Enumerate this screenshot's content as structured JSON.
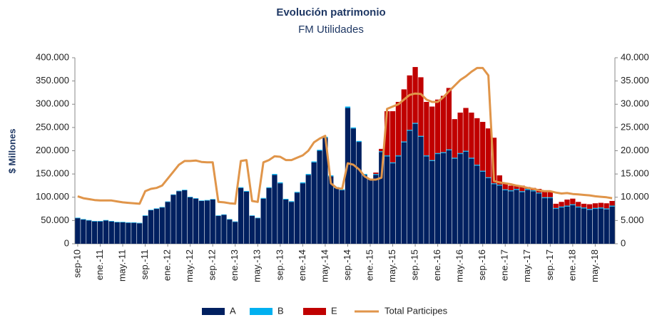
{
  "chart_data": {
    "type": "bar",
    "stacked": true,
    "title": "Evolución patrimonio",
    "subtitle": "FM Utilidades",
    "y_label": "$ Millones",
    "categories": [
      "sep-10",
      null,
      null,
      null,
      "ene.-11",
      null,
      null,
      null,
      "may.-11",
      null,
      null,
      null,
      "sep.-11",
      null,
      null,
      null,
      "ene.-12",
      null,
      null,
      null,
      "may.-12",
      null,
      null,
      null,
      "sep.-12",
      null,
      null,
      null,
      "ene.-13",
      null,
      null,
      null,
      "may.-13",
      null,
      null,
      null,
      "sep.-13",
      null,
      null,
      null,
      "ene.-14",
      null,
      null,
      null,
      "may.-14",
      null,
      null,
      null,
      "sep.-14",
      null,
      null,
      null,
      "ene.-15",
      null,
      null,
      null,
      "may.-15",
      null,
      null,
      null,
      "sep.-15",
      null,
      null,
      null,
      "ene.-16",
      null,
      null,
      null,
      "may.-16",
      null,
      null,
      null,
      "sep.-16",
      null,
      null,
      null,
      "ene.-17",
      null,
      null,
      null,
      "may.-17",
      null,
      null,
      null,
      "sep.-17",
      null,
      null,
      null,
      "ene.-18",
      null,
      null,
      null,
      "may.-18",
      null,
      null,
      null
    ],
    "series": [
      {
        "name": "A",
        "color": "#002060",
        "values": [
          55000,
          52000,
          50000,
          48000,
          48000,
          50000,
          48000,
          46000,
          46000,
          45000,
          45000,
          44000,
          60000,
          72000,
          75000,
          78000,
          90000,
          105000,
          113000,
          115000,
          100000,
          97000,
          92000,
          93000,
          95000,
          60000,
          62000,
          52000,
          47000,
          120000,
          112000,
          60000,
          55000,
          97000,
          120000,
          148000,
          130000,
          95000,
          90000,
          110000,
          130000,
          148000,
          175000,
          200000,
          228000,
          145000,
          120000,
          115000,
          292000,
          248000,
          219000,
          148000,
          138000,
          148000,
          197000,
          188000,
          173000,
          188000,
          218000,
          243000,
          258000,
          230000,
          188000,
          178000,
          193000,
          195000,
          201000,
          183000,
          193000,
          198000,
          183000,
          168000,
          155000,
          141000,
          128000,
          125000,
          115000,
          113000,
          116000,
          111000,
          116000,
          113000,
          108000,
          98000,
          98000,
          75000,
          78000,
          80000,
          83000,
          78000,
          76000,
          73000,
          75000,
          76000,
          74000,
          80000
        ]
      },
      {
        "name": "B",
        "color": "#00b0f0",
        "values": [
          1000,
          1000,
          1000,
          1000,
          1000,
          1000,
          1000,
          1000,
          1000,
          1000,
          1000,
          1000,
          1000,
          1000,
          1000,
          1000,
          1000,
          1000,
          1000,
          1000,
          1000,
          1000,
          1000,
          1000,
          1000,
          1000,
          1000,
          1000,
          1000,
          1500,
          1500,
          1000,
          1000,
          1500,
          1500,
          2000,
          2000,
          1500,
          1500,
          1500,
          2000,
          2000,
          2000,
          2000,
          2000,
          2000,
          2000,
          2000,
          3000,
          2000,
          2000,
          2000,
          2000,
          2000,
          2000,
          2000,
          2000,
          2000,
          2000,
          2000,
          2000,
          2000,
          2000,
          2000,
          2000,
          2000,
          2000,
          2000,
          2000,
          2000,
          2000,
          2000,
          2000,
          2000,
          2000,
          2000,
          2000,
          2000,
          2000,
          2000,
          2000,
          2000,
          2000,
          2000,
          2000,
          2000,
          2000,
          2000,
          2000,
          2000,
          2000,
          2000,
          2000,
          2000,
          2000,
          2000
        ]
      },
      {
        "name": "E",
        "color": "#c00000",
        "values": [
          0,
          0,
          0,
          0,
          0,
          0,
          0,
          0,
          0,
          0,
          0,
          0,
          0,
          0,
          0,
          0,
          0,
          0,
          0,
          0,
          0,
          0,
          0,
          0,
          0,
          0,
          0,
          0,
          0,
          0,
          0,
          0,
          0,
          0,
          0,
          0,
          0,
          0,
          0,
          0,
          0,
          0,
          0,
          0,
          0,
          0,
          0,
          0,
          0,
          0,
          0,
          0,
          0,
          3000,
          5000,
          95000,
          110000,
          115000,
          112000,
          117000,
          120000,
          126000,
          115000,
          115000,
          115000,
          121000,
          132000,
          83000,
          87000,
          92000,
          97000,
          100000,
          105000,
          105000,
          98000,
          20000,
          13000,
          10000,
          7000,
          12000,
          4000,
          5000,
          8000,
          12000,
          12000,
          9000,
          10000,
          13000,
          12000,
          10000,
          8000,
          10000,
          10000,
          10000,
          11000,
          10000
        ]
      },
      {
        "name": "Total Participes",
        "type": "line",
        "axis": "y2",
        "color": "#e0954a",
        "values": [
          10200,
          9800,
          9600,
          9400,
          9300,
          9300,
          9300,
          9100,
          8900,
          8800,
          8700,
          8600,
          11300,
          11800,
          12000,
          12500,
          14000,
          15500,
          17000,
          17800,
          17800,
          17900,
          17600,
          17500,
          17500,
          9000,
          8900,
          8700,
          8600,
          17800,
          18000,
          9200,
          9000,
          17500,
          18000,
          18800,
          18700,
          18000,
          18000,
          18500,
          19000,
          20000,
          21800,
          22600,
          23200,
          13000,
          12000,
          11800,
          17300,
          17000,
          16000,
          14500,
          13800,
          13800,
          14200,
          29000,
          29500,
          30000,
          31000,
          32000,
          32300,
          32200,
          31000,
          30500,
          30500,
          31500,
          32800,
          34000,
          35200,
          36000,
          37000,
          37800,
          37800,
          36200,
          13500,
          13200,
          13000,
          12800,
          12500,
          12300,
          12000,
          11800,
          11500,
          11300,
          11300,
          11000,
          10800,
          10900,
          10700,
          10600,
          10500,
          10400,
          10200,
          10100,
          10000,
          9800
        ]
      }
    ],
    "ylim": [
      0,
      400000
    ],
    "yticks": [
      0,
      {
        "value": 50000,
        "label": "50.000"
      },
      {
        "value": 100000,
        "label": "100.000"
      },
      {
        "value": 150000,
        "label": "150.000"
      },
      {
        "value": 200000,
        "label": "200.000"
      },
      {
        "value": 250000,
        "label": "250.000"
      },
      {
        "value": 300000,
        "label": "300.000"
      },
      {
        "value": 350000,
        "label": "350.000"
      },
      {
        "value": 400000,
        "label": "400.000"
      }
    ],
    "y2lim": [
      0,
      40000
    ],
    "y2ticks": [
      0,
      {
        "value": 5000,
        "label": "5.000"
      },
      {
        "value": 10000,
        "label": "10.000"
      },
      {
        "value": 15000,
        "label": "15.000"
      },
      {
        "value": 20000,
        "label": "20.000"
      },
      {
        "value": 25000,
        "label": "25.000"
      },
      {
        "value": 30000,
        "label": "30.000"
      },
      {
        "value": 35000,
        "label": "35.000"
      },
      {
        "value": 40000,
        "label": "40.000"
      }
    ],
    "legend": "bottom"
  }
}
